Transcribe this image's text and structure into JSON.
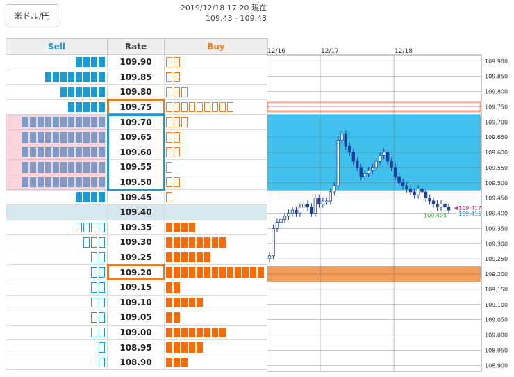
{
  "pair": {
    "label": "米ドル/円"
  },
  "header": {
    "timestamp": "2019/12/18 17:20 現在",
    "quote": "109.43 - 109.43"
  },
  "book": {
    "headers": {
      "sell": "Sell",
      "rate": "Rate",
      "buy": "Buy"
    },
    "rows": [
      {
        "rate": "109.90",
        "sell_filled": 4,
        "sell_outline": 0,
        "buy_filled": 0,
        "buy_outline": 2
      },
      {
        "rate": "109.85",
        "sell_filled": 8,
        "sell_outline": 0,
        "buy_filled": 0,
        "buy_outline": 2
      },
      {
        "rate": "109.80",
        "sell_filled": 6,
        "sell_outline": 0,
        "buy_filled": 0,
        "buy_outline": 3
      },
      {
        "rate": "109.75",
        "sell_filled": 5,
        "sell_outline": 0,
        "buy_filled": 0,
        "buy_outline": 9
      },
      {
        "rate": "109.70",
        "sell_filled": 11,
        "sell_outline": 0,
        "buy_filled": 0,
        "buy_outline": 3
      },
      {
        "rate": "109.65",
        "sell_filled": 11,
        "sell_outline": 0,
        "buy_filled": 0,
        "buy_outline": 2
      },
      {
        "rate": "109.60",
        "sell_filled": 11,
        "sell_outline": 0,
        "buy_filled": 0,
        "buy_outline": 2
      },
      {
        "rate": "109.55",
        "sell_filled": 11,
        "sell_outline": 0,
        "buy_filled": 0,
        "buy_outline": 1
      },
      {
        "rate": "109.50",
        "sell_filled": 11,
        "sell_outline": 0,
        "buy_filled": 0,
        "buy_outline": 2
      },
      {
        "rate": "109.45",
        "sell_filled": 4,
        "sell_outline": 0,
        "buy_filled": 0,
        "buy_outline": 1
      },
      {
        "rate": "109.40",
        "sell_filled": 0,
        "sell_outline": 0,
        "buy_filled": 0,
        "buy_outline": 0,
        "current": true
      },
      {
        "rate": "109.35",
        "sell_filled": 0,
        "sell_outline": 4,
        "buy_filled": 4,
        "buy_outline": 0
      },
      {
        "rate": "109.30",
        "sell_filled": 0,
        "sell_outline": 3,
        "buy_filled": 8,
        "buy_outline": 0
      },
      {
        "rate": "109.25",
        "sell_filled": 0,
        "sell_outline": 2,
        "buy_filled": 6,
        "buy_outline": 0
      },
      {
        "rate": "109.20",
        "sell_filled": 0,
        "sell_outline": 2,
        "buy_filled": 13,
        "buy_outline": 0
      },
      {
        "rate": "109.15",
        "sell_filled": 0,
        "sell_outline": 2,
        "buy_filled": 2,
        "buy_outline": 0
      },
      {
        "rate": "109.10",
        "sell_filled": 0,
        "sell_outline": 2,
        "buy_filled": 5,
        "buy_outline": 0
      },
      {
        "rate": "109.05",
        "sell_filled": 0,
        "sell_outline": 2,
        "buy_filled": 2,
        "buy_outline": 0
      },
      {
        "rate": "109.00",
        "sell_filled": 0,
        "sell_outline": 2,
        "buy_filled": 8,
        "buy_outline": 0
      },
      {
        "rate": "108.95",
        "sell_filled": 0,
        "sell_outline": 1,
        "buy_filled": 5,
        "buy_outline": 0
      },
      {
        "rate": "108.90",
        "sell_filled": 0,
        "sell_outline": 1,
        "buy_filled": 3,
        "buy_outline": 0
      }
    ],
    "highlights": {
      "sell_wall_range": [
        "109.70",
        "109.50"
      ],
      "resistance_rate": "109.75",
      "support_rate": "109.20"
    }
  },
  "chart_data": {
    "type": "line",
    "x_labels": [
      "12/16",
      "12/17",
      "12/18"
    ],
    "y_ticks": [
      "109.900",
      "109.850",
      "109.800",
      "109.750",
      "109.700",
      "109.650",
      "109.600",
      "109.550",
      "109.500",
      "109.450",
      "109.400",
      "109.350",
      "109.300",
      "109.250",
      "109.200",
      "109.150",
      "109.100",
      "109.050",
      "109.000",
      "108.950",
      "108.900"
    ],
    "ylim": [
      108.88,
      109.92
    ],
    "series": [
      {
        "values": [
          109.26,
          109.35,
          109.37,
          109.38,
          109.39,
          109.4,
          109.41,
          109.4,
          109.42,
          109.43,
          109.42,
          109.4,
          109.45,
          109.43,
          109.44,
          109.44,
          109.47,
          109.49,
          109.64,
          109.66,
          109.62,
          109.6,
          109.57,
          109.55,
          109.52,
          109.53,
          109.54,
          109.55,
          109.57,
          109.59,
          109.6,
          109.57,
          109.55,
          109.52,
          109.5,
          109.49,
          109.48,
          109.47,
          109.46,
          109.48,
          109.47,
          109.45,
          109.44,
          109.43,
          109.42,
          109.43,
          109.42,
          109.41
        ]
      }
    ],
    "annotations": {
      "bid": "109.417",
      "ask": "109.415",
      "low": "109.405"
    },
    "zones": [
      {
        "kind": "resistance",
        "from": 109.765,
        "to": 109.735,
        "color": "#f4a58a"
      },
      {
        "kind": "sell-wall",
        "from": 109.725,
        "to": 109.475,
        "color": "#1fb6ea"
      },
      {
        "kind": "support",
        "from": 109.225,
        "to": 109.175,
        "color": "#f08c3c"
      }
    ],
    "colors": {
      "sell": "#1b9ad8",
      "buy": "#ff6a00",
      "candle": "#1e3f9e",
      "bid": "#e0247a",
      "ask": "#1b9ad8",
      "low": "#22b422"
    }
  }
}
